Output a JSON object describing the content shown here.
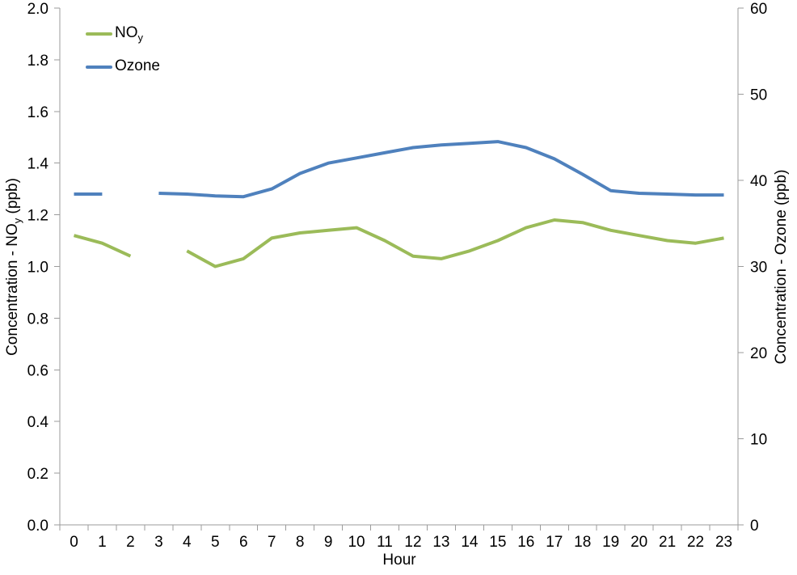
{
  "chart_data": {
    "type": "line",
    "xlabel": "Hour",
    "x_categories": [
      "0",
      "1",
      "2",
      "3",
      "4",
      "5",
      "6",
      "7",
      "8",
      "9",
      "10",
      "11",
      "12",
      "13",
      "14",
      "15",
      "16",
      "17",
      "18",
      "19",
      "20",
      "21",
      "22",
      "23"
    ],
    "left_axis": {
      "title_pre": "Concentration - NO",
      "title_sub": "y",
      "title_post": " (ppb)",
      "min": 0.0,
      "max": 2.0,
      "tick_labels": [
        "0.0",
        "0.2",
        "0.4",
        "0.6",
        "0.8",
        "1.0",
        "1.2",
        "1.4",
        "1.6",
        "1.8",
        "2.0"
      ]
    },
    "right_axis": {
      "title": "Concentration - Ozone (ppb)",
      "min": 0,
      "max": 60,
      "tick_labels": [
        "0",
        "10",
        "20",
        "30",
        "40",
        "50",
        "60"
      ]
    },
    "grid": false,
    "legend_position": "top-left",
    "axis_line_color": "#9b9b9b",
    "series": [
      {
        "name_pre": "NO",
        "name_sub": "y",
        "axis": "left",
        "color": "#9bbb59",
        "values": [
          1.12,
          1.09,
          1.04,
          null,
          1.06,
          1.0,
          1.03,
          1.11,
          1.13,
          1.14,
          1.15,
          1.1,
          1.04,
          1.03,
          1.06,
          1.1,
          1.15,
          1.18,
          1.17,
          1.14,
          1.12,
          1.1,
          1.09,
          1.11
        ]
      },
      {
        "name_pre": "Ozone",
        "name_sub": "",
        "axis": "right",
        "color": "#4f81bd",
        "values": [
          38.4,
          38.4,
          null,
          38.5,
          38.4,
          38.2,
          38.1,
          39.0,
          40.8,
          42.0,
          42.6,
          43.2,
          43.8,
          44.1,
          44.3,
          44.5,
          43.8,
          42.5,
          40.7,
          38.8,
          38.5,
          38.4,
          38.3,
          38.3
        ]
      }
    ]
  }
}
